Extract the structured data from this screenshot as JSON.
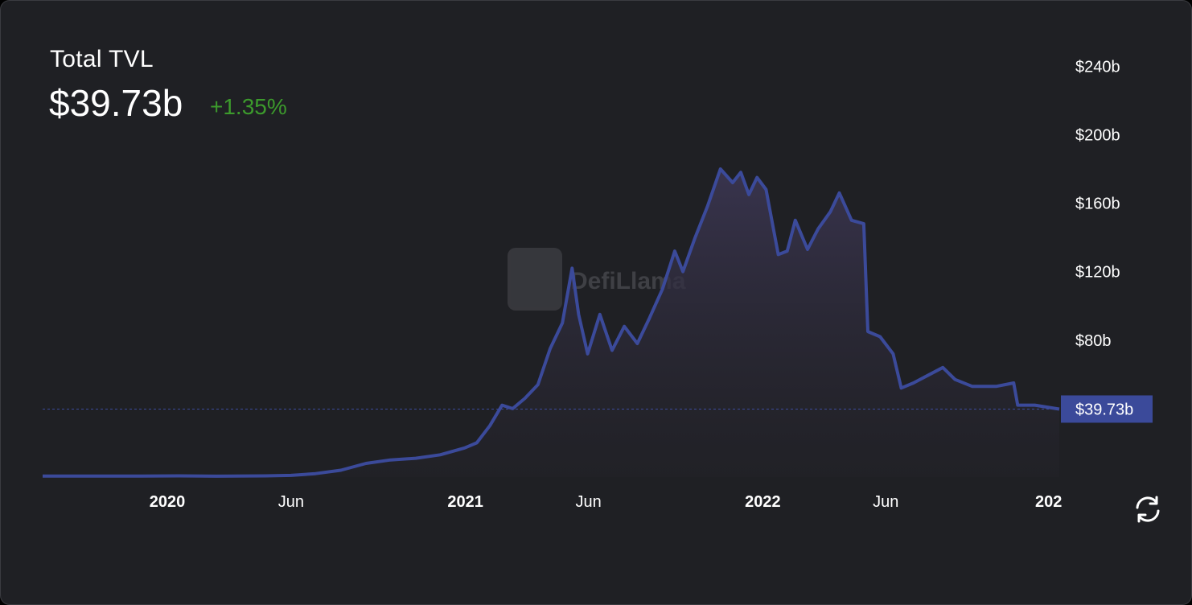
{
  "header": {
    "title": "Total TVL",
    "value": "$39.73b",
    "change": "+1.35%"
  },
  "watermark": {
    "text": "DefiLlama"
  },
  "colors": {
    "line": "#3b4a9a",
    "change": "#3c9a2c",
    "background": "#1f2024",
    "badge": "#3b4a9a"
  },
  "chart_data": {
    "type": "area",
    "x_tick_labels": [
      "2020",
      "Jun",
      "2021",
      "Jun",
      "2022",
      "Jun",
      "202"
    ],
    "x_ticks": [
      "2020-01-01",
      "2020-06-01",
      "2021-01-01",
      "2021-06-01",
      "2022-01-01",
      "2022-06-01",
      "2023-01-01"
    ],
    "xlim": [
      "2019-08-01",
      "2022-12-31"
    ],
    "y_tick_labels": [
      "$80b",
      "$120b",
      "$160b",
      "$200b",
      "$240b"
    ],
    "y_ticks": [
      80,
      120,
      160,
      200,
      240
    ],
    "ylim": [
      0,
      250
    ],
    "unit": "USD billions",
    "current_value_label": "$39.73b",
    "current_value": 39.73,
    "series": [
      {
        "points": [
          [
            "2019-08-01",
            0.6
          ],
          [
            "2019-10-01",
            0.6
          ],
          [
            "2019-12-01",
            0.6
          ],
          [
            "2020-01-15",
            0.7
          ],
          [
            "2020-03-01",
            0.5
          ],
          [
            "2020-05-01",
            0.7
          ],
          [
            "2020-06-01",
            1.0
          ],
          [
            "2020-07-01",
            2.0
          ],
          [
            "2020-08-01",
            4.0
          ],
          [
            "2020-09-01",
            8.0
          ],
          [
            "2020-10-01",
            10.0
          ],
          [
            "2020-11-01",
            11.0
          ],
          [
            "2020-12-01",
            13.0
          ],
          [
            "2020-12-31",
            17.0
          ],
          [
            "2021-01-15",
            20.0
          ],
          [
            "2021-01-31",
            30.0
          ],
          [
            "2021-02-15",
            42.0
          ],
          [
            "2021-02-28",
            40.0
          ],
          [
            "2021-03-15",
            46.0
          ],
          [
            "2021-03-31",
            54.0
          ],
          [
            "2021-04-15",
            75.0
          ],
          [
            "2021-04-30",
            90.0
          ],
          [
            "2021-05-12",
            122.0
          ],
          [
            "2021-05-20",
            95.0
          ],
          [
            "2021-05-31",
            72.0
          ],
          [
            "2021-06-15",
            95.0
          ],
          [
            "2021-06-30",
            74.0
          ],
          [
            "2021-07-15",
            88.0
          ],
          [
            "2021-07-31",
            78.0
          ],
          [
            "2021-08-15",
            93.0
          ],
          [
            "2021-08-31",
            110.0
          ],
          [
            "2021-09-15",
            132.0
          ],
          [
            "2021-09-25",
            120.0
          ],
          [
            "2021-10-10",
            140.0
          ],
          [
            "2021-10-25",
            158.0
          ],
          [
            "2021-11-10",
            180.0
          ],
          [
            "2021-11-25",
            172.0
          ],
          [
            "2021-12-05",
            178.0
          ],
          [
            "2021-12-15",
            165.0
          ],
          [
            "2021-12-25",
            175.0
          ],
          [
            "2022-01-05",
            168.0
          ],
          [
            "2022-01-20",
            130.0
          ],
          [
            "2022-01-31",
            132.0
          ],
          [
            "2022-02-10",
            150.0
          ],
          [
            "2022-02-25",
            133.0
          ],
          [
            "2022-03-10",
            145.0
          ],
          [
            "2022-03-25",
            155.0
          ],
          [
            "2022-04-05",
            166.0
          ],
          [
            "2022-04-20",
            150.0
          ],
          [
            "2022-05-05",
            148.0
          ],
          [
            "2022-05-10",
            85.0
          ],
          [
            "2022-05-25",
            82.0
          ],
          [
            "2022-06-10",
            72.0
          ],
          [
            "2022-06-20",
            52.0
          ],
          [
            "2022-07-05",
            55.0
          ],
          [
            "2022-07-25",
            60.0
          ],
          [
            "2022-08-10",
            64.0
          ],
          [
            "2022-08-25",
            57.0
          ],
          [
            "2022-09-15",
            53.0
          ],
          [
            "2022-10-15",
            53.0
          ],
          [
            "2022-11-05",
            55.0
          ],
          [
            "2022-11-10",
            42.0
          ],
          [
            "2022-12-01",
            42.0
          ],
          [
            "2022-12-31",
            39.73
          ]
        ]
      }
    ]
  }
}
